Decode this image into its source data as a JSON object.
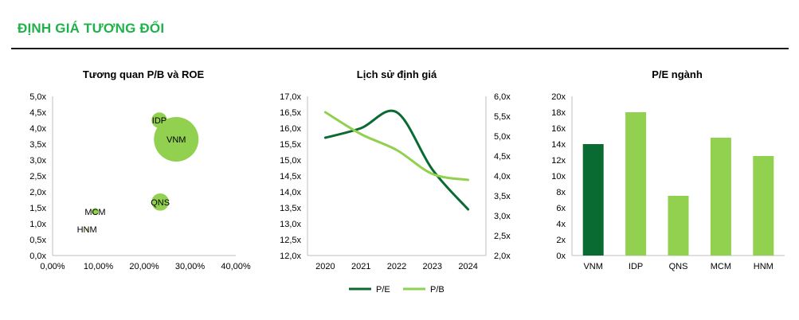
{
  "header": {
    "title": "ĐỊNH GIÁ TƯƠNG ĐỐI"
  },
  "colors": {
    "accent": "#1fb24a",
    "dark_green": "#0a6b32",
    "light_green": "#92d050"
  },
  "chart_data": [
    {
      "type": "scatter",
      "title": "Tương quan P/B và ROE",
      "x_ticks": [
        "0,00%",
        "10,00%",
        "20,00%",
        "30,00%",
        "40,00%"
      ],
      "y_ticks": [
        "0,0x",
        "0,5x",
        "1,0x",
        "1,5x",
        "2,0x",
        "2,5x",
        "3,0x",
        "3,5x",
        "4,0x",
        "4,5x",
        "5,0x"
      ],
      "xlim": [
        0,
        40
      ],
      "ylim": [
        0,
        5.0
      ],
      "points": [
        {
          "label": "VNM",
          "x": 27.0,
          "y": 3.65,
          "size": 10
        },
        {
          "label": "IDP",
          "x": 23.3,
          "y": 4.25,
          "size": 1.2
        },
        {
          "label": "QNS",
          "x": 23.5,
          "y": 1.68,
          "size": 1.5
        },
        {
          "label": "MCM",
          "x": 9.3,
          "y": 1.38,
          "size": 0.25
        },
        {
          "label": "HNM",
          "x": 7.5,
          "y": 0.82,
          "size": 0.02
        }
      ]
    },
    {
      "type": "line",
      "title": "Lịch sử định giá",
      "categories": [
        "2020",
        "2021",
        "2022",
        "2023",
        "2024"
      ],
      "y_ticks_left": [
        "12,0x",
        "12,5x",
        "13,0x",
        "13,5x",
        "14,0x",
        "14,5x",
        "15,0x",
        "15,5x",
        "16,0x",
        "16,5x",
        "17,0x"
      ],
      "y_ticks_right": [
        "2,0x",
        "2,5x",
        "3,0x",
        "3,5x",
        "4,0x",
        "4,5x",
        "5,0x",
        "5,5x",
        "6,0x"
      ],
      "ylim_left": [
        12.0,
        17.0
      ],
      "ylim_right": [
        2.0,
        6.0
      ],
      "series": [
        {
          "name": "P/E",
          "axis": "left",
          "values": [
            15.7,
            16.0,
            16.5,
            14.7,
            13.45
          ]
        },
        {
          "name": "P/B",
          "axis": "right",
          "values": [
            5.6,
            5.05,
            4.65,
            4.05,
            3.9
          ]
        }
      ],
      "legend": "bottom"
    },
    {
      "type": "bar",
      "title": "P/E ngành",
      "categories": [
        "VNM",
        "IDP",
        "QNS",
        "MCM",
        "HNM"
      ],
      "values": [
        14,
        18,
        7.5,
        14.8,
        12.5
      ],
      "highlight": "VNM",
      "y_ticks": [
        "0x",
        "2x",
        "4x",
        "6x",
        "8x",
        "10x",
        "12x",
        "14x",
        "16x",
        "18x",
        "20x"
      ],
      "ylim": [
        0,
        20
      ]
    }
  ]
}
